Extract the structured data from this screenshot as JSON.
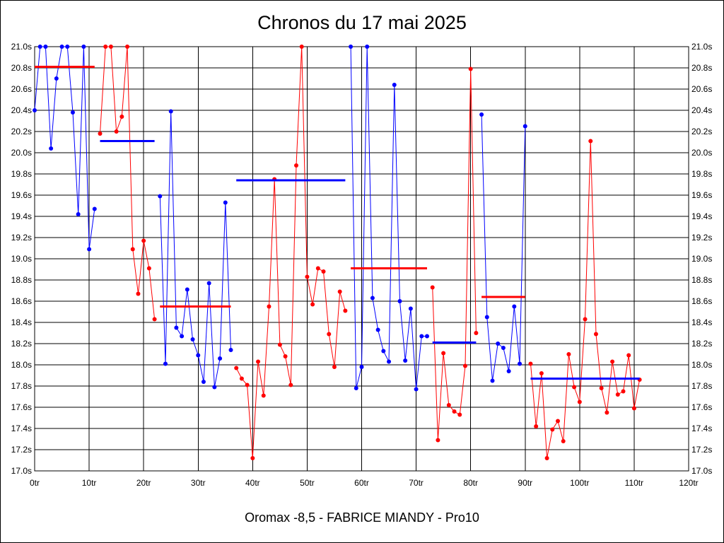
{
  "chart_data": {
    "type": "line",
    "title": "Chronos du 17 mai 2025",
    "footer": "Oromax -8,5 - FABRICE MIANDY - Pro10",
    "x_range": [
      0,
      120
    ],
    "y_range": [
      17.0,
      21.0
    ],
    "grid": true,
    "x_ticks": [
      {
        "v": 0,
        "label": "0tr"
      },
      {
        "v": 10,
        "label": "10tr"
      },
      {
        "v": 20,
        "label": "20tr"
      },
      {
        "v": 30,
        "label": "30tr"
      },
      {
        "v": 40,
        "label": "40tr"
      },
      {
        "v": 50,
        "label": "50tr"
      },
      {
        "v": 60,
        "label": "60tr"
      },
      {
        "v": 70,
        "label": "70tr"
      },
      {
        "v": 80,
        "label": "80tr"
      },
      {
        "v": 90,
        "label": "90tr"
      },
      {
        "v": 100,
        "label": "100tr"
      },
      {
        "v": 110,
        "label": "110tr"
      },
      {
        "v": 120,
        "label": "120tr"
      }
    ],
    "y_ticks": [
      {
        "v": 17.0,
        "label": "17.0s"
      },
      {
        "v": 17.2,
        "label": "17.2s"
      },
      {
        "v": 17.4,
        "label": "17.4s"
      },
      {
        "v": 17.6,
        "label": "17.6s"
      },
      {
        "v": 17.8,
        "label": "17.8s"
      },
      {
        "v": 18.0,
        "label": "18.0s"
      },
      {
        "v": 18.2,
        "label": "18.2s"
      },
      {
        "v": 18.4,
        "label": "18.4s"
      },
      {
        "v": 18.6,
        "label": "18.6s"
      },
      {
        "v": 18.8,
        "label": "18.8s"
      },
      {
        "v": 19.0,
        "label": "19.0s"
      },
      {
        "v": 19.2,
        "label": "19.2s"
      },
      {
        "v": 19.4,
        "label": "19.4s"
      },
      {
        "v": 19.6,
        "label": "19.6s"
      },
      {
        "v": 19.8,
        "label": "19.8s"
      },
      {
        "v": 20.0,
        "label": "20.0s"
      },
      {
        "v": 20.2,
        "label": "20.2s"
      },
      {
        "v": 20.4,
        "label": "20.4s"
      },
      {
        "v": 20.6,
        "label": "20.6s"
      },
      {
        "v": 20.8,
        "label": "20.8s"
      },
      {
        "v": 21.0,
        "label": "21.0s"
      }
    ],
    "series": [
      {
        "color": "#0000ff",
        "points": [
          [
            0,
            20.4
          ],
          [
            1,
            21.0
          ],
          [
            2,
            21.0
          ],
          [
            3,
            20.04
          ],
          [
            4,
            20.7
          ],
          [
            5,
            21.0
          ],
          [
            6,
            21.0
          ],
          [
            7,
            20.38
          ],
          [
            8,
            19.42
          ],
          [
            9,
            21.0
          ],
          [
            10,
            19.09
          ],
          [
            11,
            19.47
          ]
        ]
      },
      {
        "color": "#ff0000",
        "points": [
          [
            12,
            20.18
          ],
          [
            13,
            21.0
          ],
          [
            14,
            21.0
          ],
          [
            15,
            20.2
          ],
          [
            16,
            20.34
          ],
          [
            17,
            21.0
          ],
          [
            18,
            19.09
          ],
          [
            19,
            18.67
          ],
          [
            20,
            19.17
          ],
          [
            21,
            18.91
          ],
          [
            22,
            18.43
          ]
        ]
      },
      {
        "color": "#0000ff",
        "points": [
          [
            23,
            19.59
          ],
          [
            24,
            18.01
          ],
          [
            25,
            20.39
          ],
          [
            26,
            18.35
          ],
          [
            27,
            18.27
          ],
          [
            28,
            18.71
          ],
          [
            29,
            18.24
          ],
          [
            30,
            18.09
          ],
          [
            31,
            17.84
          ],
          [
            32,
            18.77
          ],
          [
            33,
            17.79
          ],
          [
            34,
            18.06
          ],
          [
            35,
            19.53
          ],
          [
            36,
            18.14
          ]
        ]
      },
      {
        "color": "#ff0000",
        "points": [
          [
            37,
            17.97
          ],
          [
            38,
            17.87
          ],
          [
            39,
            17.81
          ],
          [
            40,
            17.12
          ],
          [
            41,
            18.03
          ],
          [
            42,
            17.71
          ],
          [
            43,
            18.55
          ],
          [
            44,
            19.75
          ],
          [
            45,
            18.19
          ],
          [
            46,
            18.08
          ],
          [
            47,
            17.81
          ],
          [
            48,
            19.88
          ],
          [
            49,
            21.0
          ],
          [
            50,
            18.83
          ],
          [
            51,
            18.57
          ],
          [
            52,
            18.91
          ],
          [
            53,
            18.88
          ],
          [
            54,
            18.29
          ],
          [
            55,
            17.98
          ],
          [
            56,
            18.69
          ],
          [
            57,
            18.51
          ]
        ]
      },
      {
        "color": "#0000ff",
        "points": [
          [
            58,
            21.0
          ],
          [
            59,
            17.78
          ],
          [
            60,
            17.98
          ],
          [
            61,
            21.0
          ],
          [
            62,
            18.63
          ],
          [
            63,
            18.33
          ],
          [
            64,
            18.13
          ],
          [
            65,
            18.03
          ],
          [
            66,
            20.64
          ],
          [
            67,
            18.6
          ],
          [
            68,
            18.04
          ],
          [
            69,
            18.53
          ],
          [
            70,
            17.77
          ],
          [
            71,
            18.27
          ],
          [
            72,
            18.27
          ]
        ]
      },
      {
        "color": "#ff0000",
        "points": [
          [
            73,
            18.73
          ],
          [
            74,
            17.29
          ],
          [
            75,
            18.11
          ],
          [
            76,
            17.62
          ],
          [
            77,
            17.56
          ],
          [
            78,
            17.53
          ],
          [
            79,
            17.99
          ],
          [
            80,
            20.79
          ],
          [
            81,
            18.3
          ]
        ]
      },
      {
        "color": "#0000ff",
        "points": [
          [
            82,
            20.36
          ],
          [
            83,
            18.45
          ],
          [
            84,
            17.85
          ],
          [
            85,
            18.2
          ],
          [
            86,
            18.16
          ],
          [
            87,
            17.94
          ],
          [
            88,
            18.55
          ],
          [
            89,
            18.01
          ],
          [
            90,
            20.25
          ]
        ]
      },
      {
        "color": "#ff0000",
        "points": [
          [
            91,
            18.01
          ],
          [
            92,
            17.42
          ],
          [
            93,
            17.92
          ],
          [
            94,
            17.12
          ],
          [
            95,
            17.39
          ],
          [
            96,
            17.47
          ],
          [
            97,
            17.28
          ],
          [
            98,
            18.1
          ],
          [
            99,
            17.79
          ],
          [
            100,
            17.65
          ],
          [
            101,
            18.43
          ],
          [
            102,
            20.11
          ],
          [
            103,
            18.29
          ],
          [
            104,
            17.78
          ],
          [
            105,
            17.55
          ],
          [
            106,
            18.03
          ],
          [
            107,
            17.72
          ],
          [
            108,
            17.75
          ],
          [
            109,
            18.09
          ],
          [
            110,
            17.59
          ],
          [
            111,
            17.86
          ]
        ]
      }
    ],
    "averages": [
      {
        "color": "#ff0000",
        "x": [
          0,
          11
        ],
        "y": 20.81
      },
      {
        "color": "#0000ff",
        "x": [
          12,
          22
        ],
        "y": 20.11
      },
      {
        "color": "#ff0000",
        "x": [
          23,
          36
        ],
        "y": 18.55
      },
      {
        "color": "#0000ff",
        "x": [
          37,
          57
        ],
        "y": 19.74
      },
      {
        "color": "#ff0000",
        "x": [
          58,
          72
        ],
        "y": 18.91
      },
      {
        "color": "#0000ff",
        "x": [
          73,
          81
        ],
        "y": 18.21
      },
      {
        "color": "#ff0000",
        "x": [
          82,
          90
        ],
        "y": 18.64
      },
      {
        "color": "#0000ff",
        "x": [
          91,
          111
        ],
        "y": 17.87
      }
    ]
  }
}
